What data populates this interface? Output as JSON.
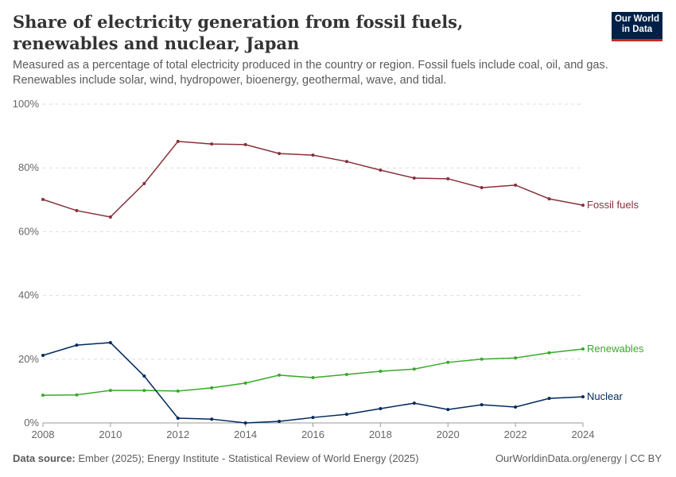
{
  "title": "Share of electricity generation from fossil fuels, renewables and nuclear, Japan",
  "subtitle": "Measured as a percentage of total electricity produced in the country or region. Fossil fuels include coal, oil, and gas. Renewables include solar, wind, hydropower, bioenergy, geothermal, wave, and tidal.",
  "logo": "Our World in Data",
  "footer": {
    "source_label": "Data source:",
    "source": "Ember (2025); Energy Institute - Statistical Review of World Energy (2025)",
    "right": "OurWorldinData.org/energy | CC BY"
  },
  "chart_data": {
    "type": "line",
    "x": [
      2008,
      2009,
      2010,
      2011,
      2012,
      2013,
      2014,
      2015,
      2016,
      2017,
      2018,
      2019,
      2020,
      2021,
      2022,
      2023,
      2024
    ],
    "xlim": [
      2008,
      2024
    ],
    "ylim": [
      0,
      100
    ],
    "xticks": [
      "2008",
      "2010",
      "2012",
      "2014",
      "2016",
      "2018",
      "2020",
      "2022",
      "2024"
    ],
    "yticks": [
      "0%",
      "20%",
      "40%",
      "60%",
      "80%",
      "100%"
    ],
    "grid": "horizontal dashed",
    "legend": "inline labels at line ends",
    "series": [
      {
        "name": "Fossil fuels",
        "color": "#883039",
        "values": [
          70.1,
          66.6,
          64.6,
          75.1,
          88.3,
          87.5,
          87.3,
          84.5,
          84.0,
          82.0,
          79.3,
          76.8,
          76.6,
          73.8,
          74.6,
          70.3,
          68.3
        ]
      },
      {
        "name": "Renewables",
        "color": "#38aa2a",
        "values": [
          8.7,
          8.8,
          10.2,
          10.2,
          10.0,
          11.0,
          12.5,
          15.0,
          14.2,
          15.2,
          16.2,
          16.9,
          19.0,
          20.0,
          20.4,
          22.0,
          23.2
        ]
      },
      {
        "name": "Nuclear",
        "color": "#00295b",
        "values": [
          21.2,
          24.4,
          25.2,
          14.7,
          1.5,
          1.2,
          0.0,
          0.5,
          1.7,
          2.7,
          4.5,
          6.2,
          4.2,
          5.7,
          5.0,
          7.7,
          8.2
        ]
      }
    ]
  }
}
